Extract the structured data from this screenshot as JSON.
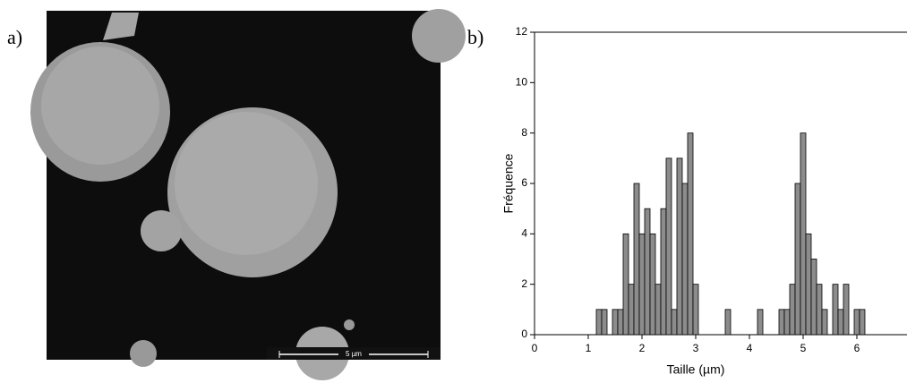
{
  "labels": {
    "panel_a": "a)",
    "panel_b": "b)",
    "scale_bar": "5 µm"
  },
  "chart_data": {
    "type": "histogram",
    "x_label": "Taille (µm)",
    "y_label": "Fréquence",
    "bins": [
      1.15,
      1.25,
      1.35,
      1.45,
      1.55,
      1.65,
      1.75,
      1.85,
      1.95,
      2.05,
      2.15,
      2.25,
      2.35,
      2.45,
      2.55,
      2.65,
      2.75,
      2.85,
      2.95,
      3.05,
      3.15,
      3.25,
      3.35,
      3.45,
      3.55,
      3.65,
      3.75,
      3.85,
      3.95,
      4.05,
      4.15,
      4.25,
      4.35,
      4.45,
      4.55,
      4.65,
      4.75,
      4.85,
      4.95,
      5.05,
      5.15,
      5.25,
      5.35,
      5.45,
      5.55,
      5.65,
      5.75,
      5.85,
      5.95,
      6.05,
      6.15
    ],
    "values": [
      1,
      1,
      0,
      1,
      1,
      4,
      2,
      6,
      4,
      5,
      4,
      2,
      5,
      7,
      1,
      7,
      6,
      8,
      2,
      0,
      0,
      0,
      0,
      0,
      1,
      0,
      0,
      0,
      0,
      0,
      1,
      0,
      0,
      0,
      1,
      1,
      2,
      6,
      8,
      4,
      3,
      2,
      1,
      0,
      2,
      1,
      2,
      0,
      1,
      1
    ],
    "color": "#8c8c8c",
    "xlim": [
      0,
      7
    ],
    "xticks": [
      0,
      1,
      2,
      3,
      4,
      5,
      6
    ],
    "ylim": [
      0,
      12
    ],
    "yticks": [
      0,
      2,
      4,
      6,
      8,
      10,
      12
    ]
  }
}
